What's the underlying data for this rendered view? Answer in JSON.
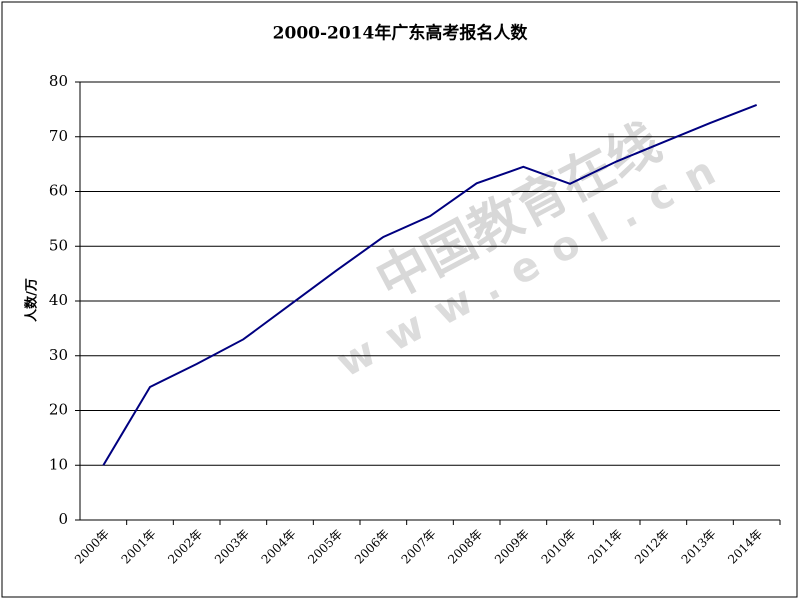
{
  "chart_data": {
    "type": "line",
    "title": "2000-2014年广东高考报名人数",
    "y_label": "人数/万",
    "watermark": [
      "中国教育在线",
      "www.eol.cn"
    ],
    "categories": [
      "2000年",
      "2001年",
      "2002年",
      "2003年",
      "2004年",
      "2005年",
      "2006年",
      "2007年",
      "2008年",
      "2009年",
      "2010年",
      "2011年",
      "2012年",
      "2013年",
      "2014年"
    ],
    "series": [
      {
        "name": "报名人数",
        "color": "#000080",
        "values": [
          10,
          24.3,
          28.5,
          33,
          39.3,
          45.6,
          51.7,
          55.5,
          61.5,
          64.5,
          61.4,
          65.5,
          69,
          72.5,
          75.8
        ]
      }
    ],
    "ylim": [
      0,
      80
    ],
    "yticks": [
      0,
      10,
      20,
      30,
      40,
      50,
      60,
      70,
      80
    ],
    "grid": true,
    "legend": false
  }
}
